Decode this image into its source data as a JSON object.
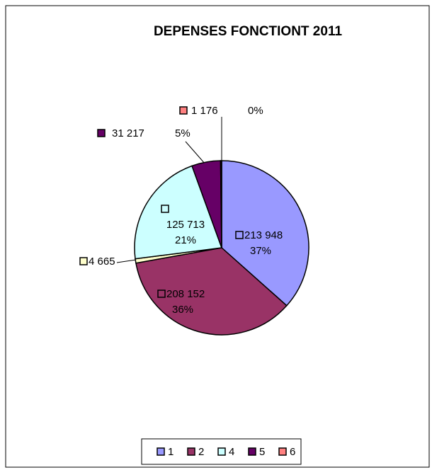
{
  "chart_data": {
    "type": "pie",
    "title": "DEPENSES FONCTIONT 2011",
    "categories": [
      "1",
      "2",
      null,
      "4",
      "5",
      "6"
    ],
    "values": [
      213948,
      208152,
      4665,
      125713,
      31217,
      1176
    ],
    "value_labels": [
      "213 948",
      "208 152",
      "4 665",
      "125 713",
      "31 217",
      "1 176"
    ],
    "percent_labels": [
      "37%",
      "36%",
      null,
      "21%",
      "5%",
      "0%"
    ],
    "colors": [
      "#9999ff",
      "#993366",
      "#ffffcc",
      "#ccffff",
      "#660066",
      "#ff8080"
    ],
    "legend": "bottom"
  }
}
